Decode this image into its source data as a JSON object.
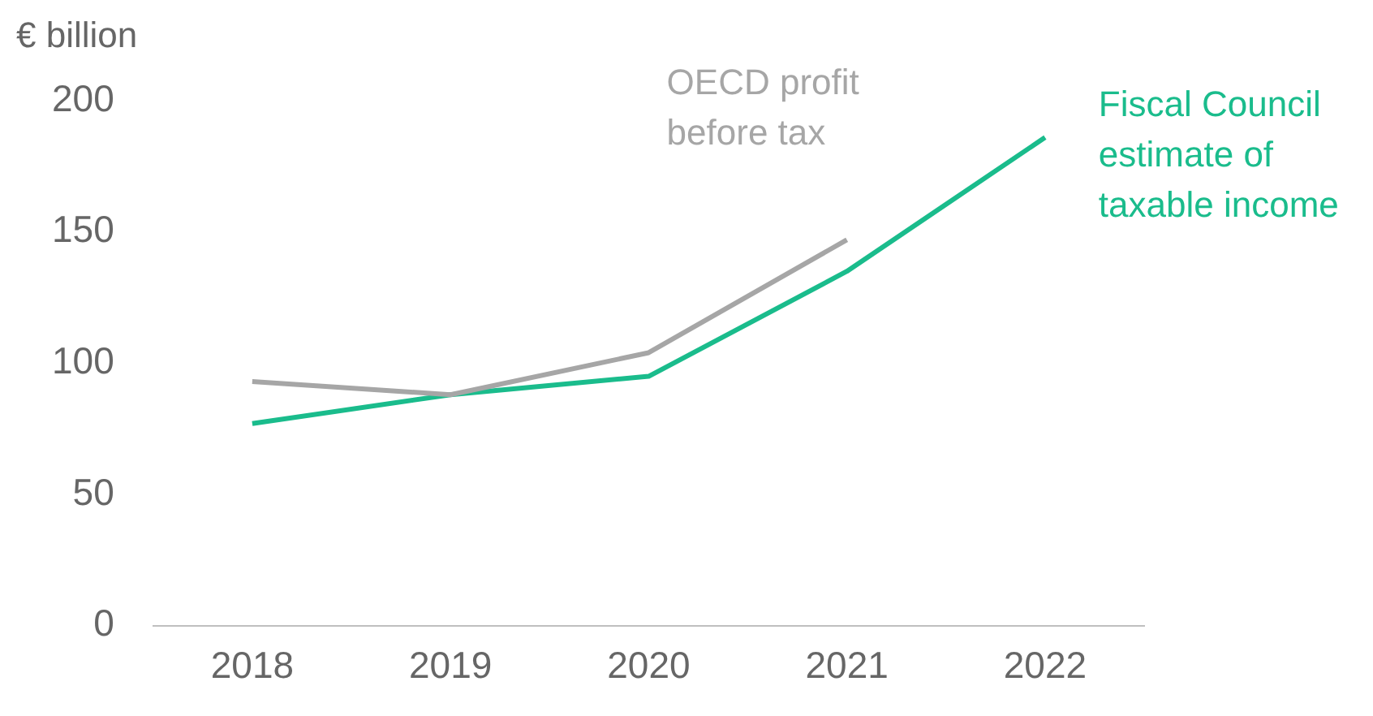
{
  "chart_data": {
    "type": "line",
    "ylabel": "€ billion",
    "categories": [
      "2018",
      "2019",
      "2020",
      "2021",
      "2022"
    ],
    "series": [
      {
        "name": "OECD profit before tax",
        "color": "#a6a6a6",
        "values": [
          93,
          88,
          104,
          147,
          null
        ]
      },
      {
        "name": "Fiscal Council estimate of taxable income",
        "color": "#1abc8c",
        "values": [
          77,
          88,
          95,
          135,
          186
        ]
      }
    ],
    "ylim": [
      0,
      200
    ],
    "yticks": [
      0,
      50,
      100,
      150,
      200
    ],
    "grid": false,
    "legend": false,
    "marker": "none",
    "line_style": "solid"
  }
}
